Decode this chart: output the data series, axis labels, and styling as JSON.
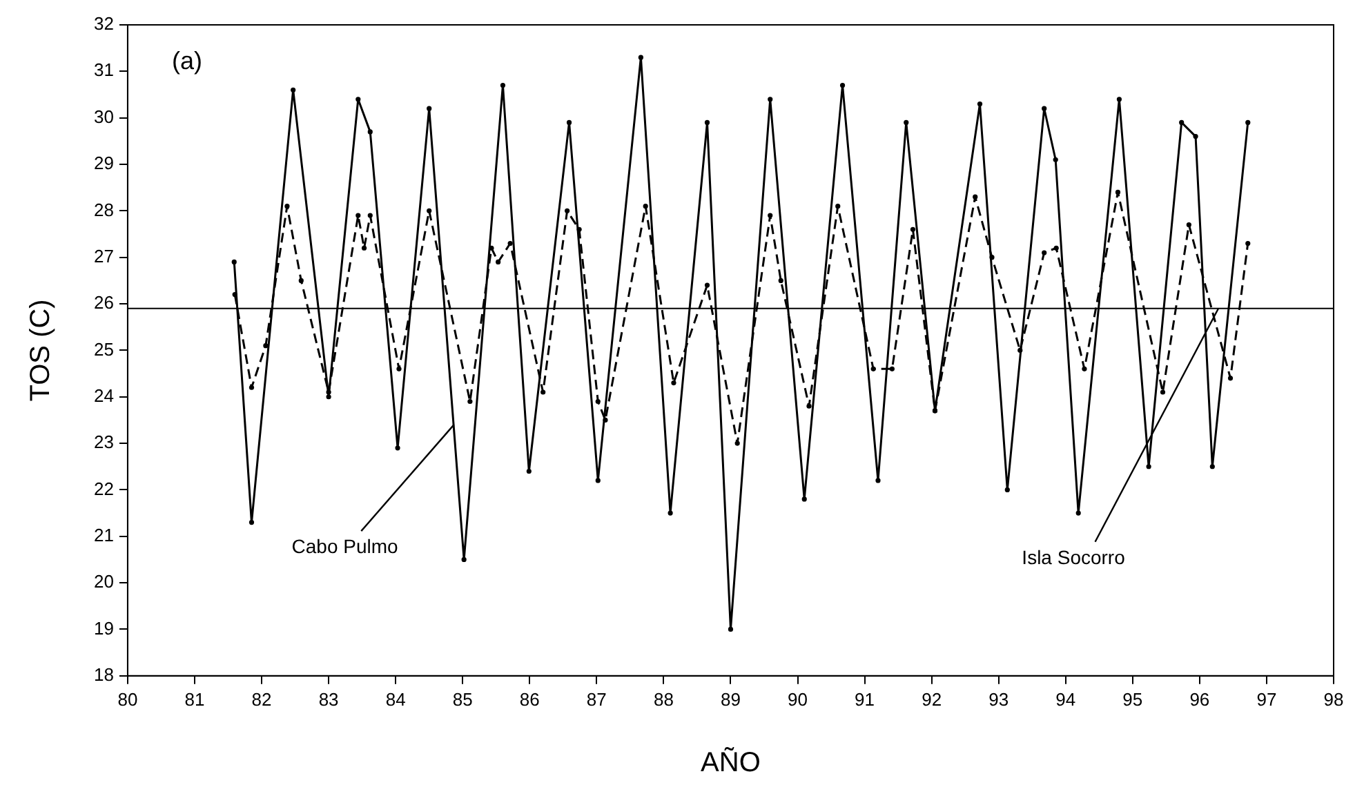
{
  "chart_data": {
    "type": "line",
    "xlabel": "AÑO",
    "ylabel": "TOS (C)",
    "xlim": [
      80,
      98
    ],
    "xticks": [
      80,
      81,
      82,
      83,
      84,
      85,
      86,
      87,
      88,
      89,
      90,
      91,
      92,
      93,
      94,
      95,
      96,
      97,
      98
    ],
    "ylim": [
      18,
      32
    ],
    "yticks": [
      18,
      19,
      20,
      21,
      22,
      23,
      24,
      25,
      26,
      27,
      28,
      29,
      30,
      31,
      32
    ],
    "grid": false,
    "legend": false,
    "marker": "circle",
    "ref_lines": [
      {
        "axis": "y",
        "value": 25.9,
        "color": "#000000"
      }
    ],
    "annotations": [
      "(a)",
      {
        "text": "Cabo Pulmo",
        "x": 84.87,
        "y": 23.4
      },
      {
        "text": "Isla Socorro",
        "x": 96.28,
        "y": 25.9
      }
    ],
    "series": [
      {
        "color": "#000000",
        "line_style": "solid",
        "x": [
          81.59,
          81.85,
          82.47,
          83.0,
          83.44,
          83.62,
          84.03,
          84.5,
          85.02,
          85.6,
          85.99,
          86.59,
          87.02,
          87.66,
          88.1,
          88.65,
          89.0,
          89.59,
          90.1,
          90.67,
          91.2,
          91.62,
          92.05,
          92.72,
          93.13,
          93.68,
          93.85,
          94.19,
          94.8,
          95.24,
          95.73,
          95.94,
          96.19,
          96.72
        ],
        "values": [
          26.9,
          21.3,
          30.6,
          24.0,
          30.4,
          29.7,
          22.9,
          30.2,
          20.5,
          30.7,
          22.4,
          29.9,
          22.2,
          31.3,
          21.5,
          29.9,
          19.0,
          30.4,
          21.8,
          30.7,
          22.2,
          29.9,
          23.7,
          30.3,
          22.0,
          30.2,
          29.1,
          21.5,
          30.4,
          22.5,
          29.9,
          29.6,
          22.5,
          29.9
        ]
      },
      {
        "color": "#000000",
        "line_style": "dashed",
        "x": [
          81.6,
          81.85,
          82.06,
          82.38,
          82.59,
          83.0,
          83.44,
          83.53,
          83.62,
          84.05,
          84.5,
          85.11,
          85.43,
          85.53,
          85.71,
          86.2,
          86.56,
          86.74,
          87.02,
          87.13,
          87.73,
          88.15,
          88.65,
          89.1,
          89.59,
          89.75,
          90.17,
          90.6,
          91.13,
          91.41,
          91.72,
          92.05,
          92.65,
          92.9,
          93.32,
          93.68,
          93.86,
          94.28,
          94.78,
          95.45,
          95.84,
          96.46,
          96.72
        ],
        "values": [
          26.2,
          24.2,
          25.1,
          28.1,
          26.5,
          24.1,
          27.9,
          27.2,
          27.9,
          24.6,
          28.0,
          23.9,
          27.2,
          26.9,
          27.3,
          24.1,
          28.0,
          27.6,
          23.9,
          23.5,
          28.1,
          24.3,
          26.4,
          23.0,
          27.9,
          26.5,
          23.8,
          28.1,
          24.6,
          24.6,
          27.6,
          23.7,
          28.3,
          27.0,
          25.0,
          27.1,
          27.2,
          24.6,
          28.4,
          24.1,
          27.7,
          24.4,
          27.3
        ]
      }
    ]
  }
}
